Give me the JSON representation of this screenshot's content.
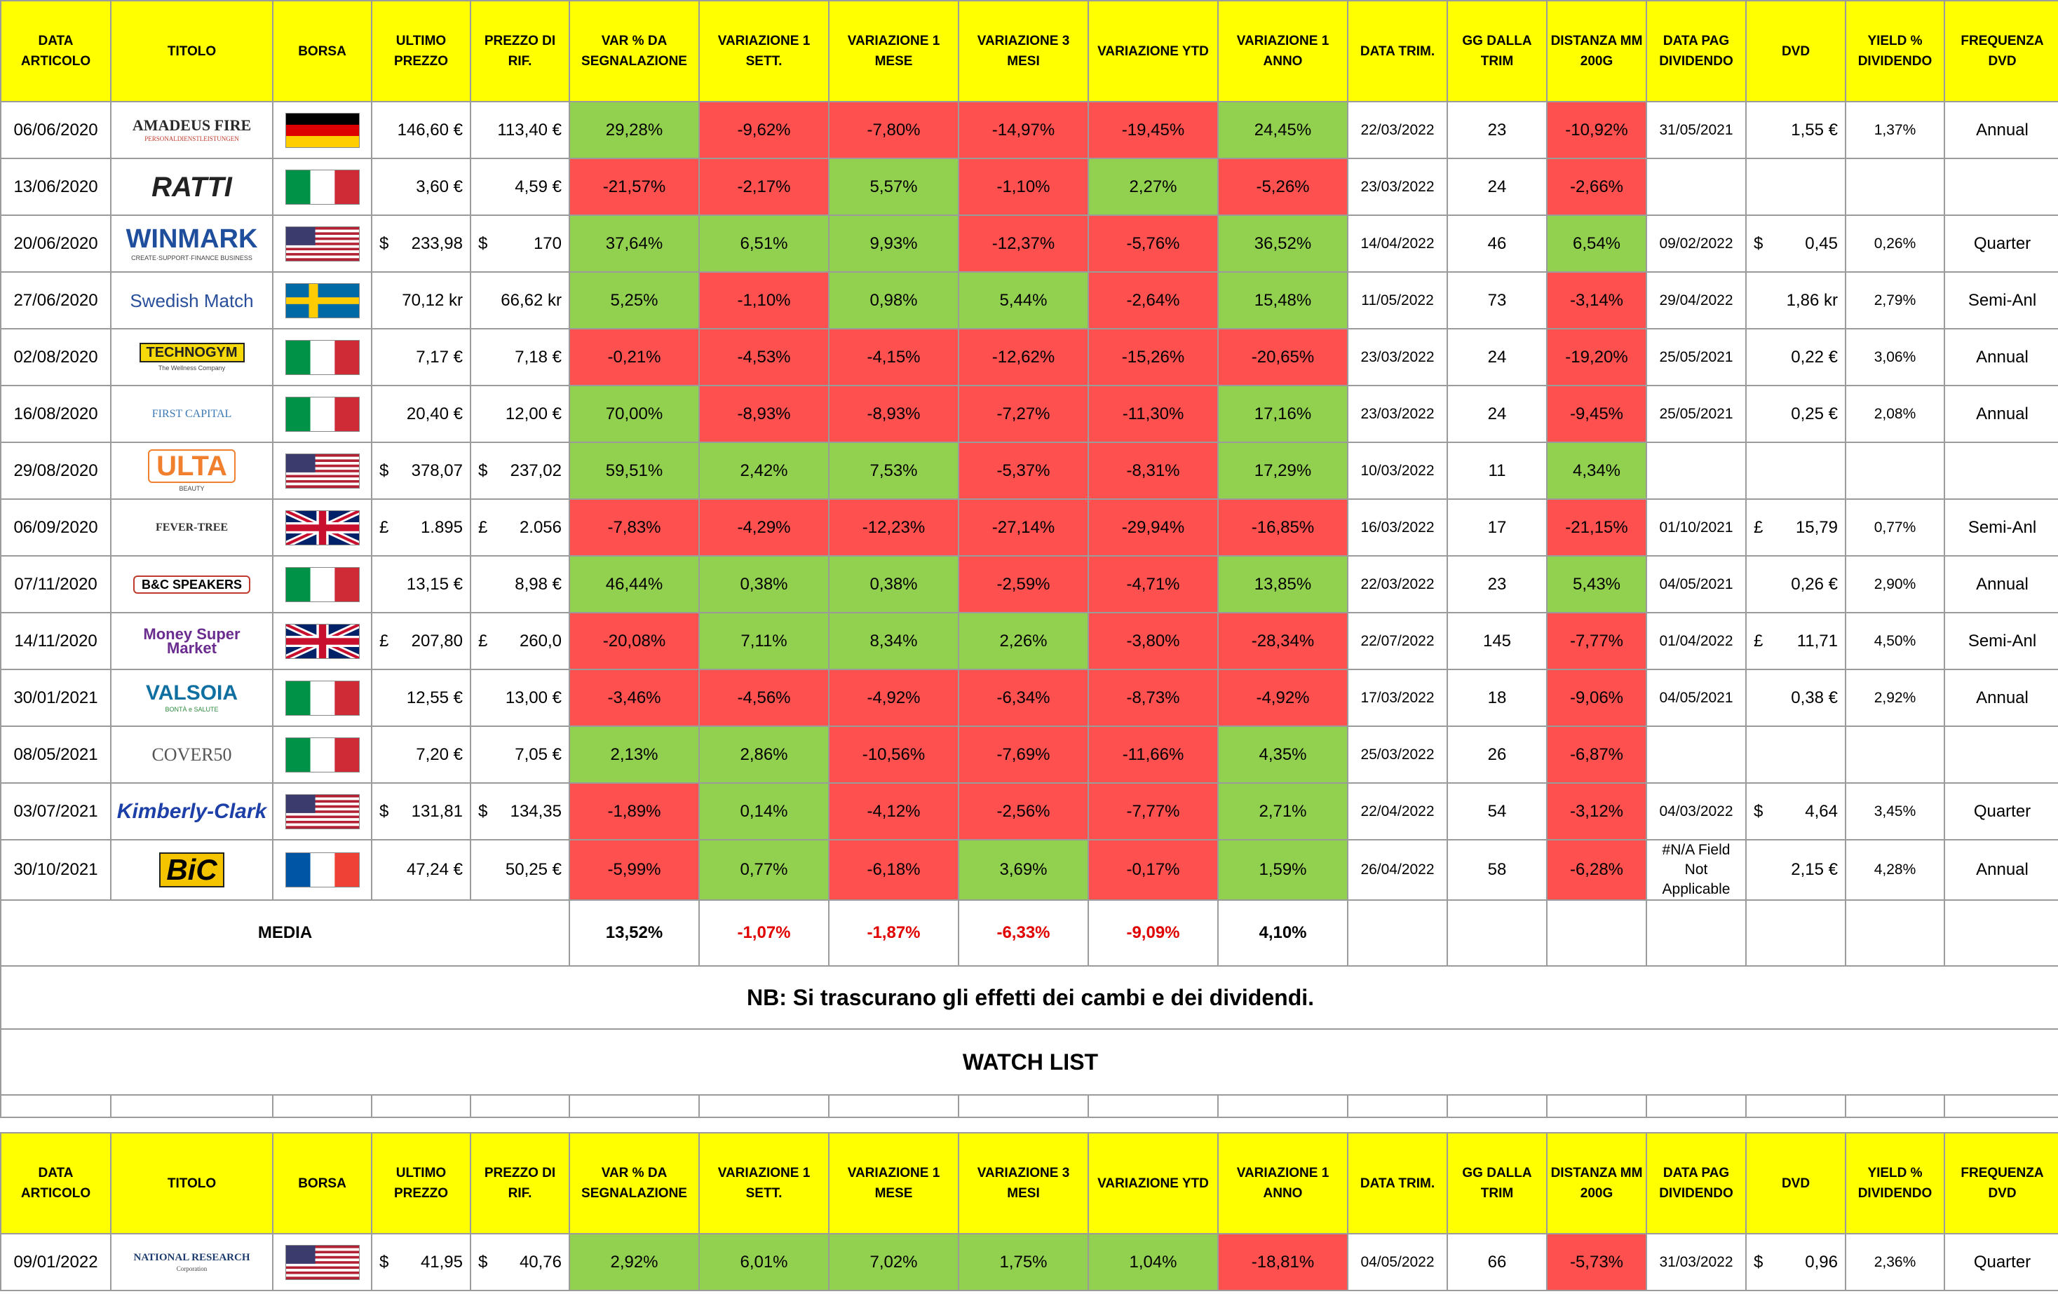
{
  "headers": [
    "DATA ARTICOLO",
    "TITOLO",
    "BORSA",
    "ULTIMO PREZZO",
    "PREZZO DI RIF.",
    "VAR % DA SEGNALAZIONE",
    "VARIAZIONE 1 SETT.",
    "VARIAZIONE 1 MESE",
    "VARIAZIONE 3 MESI",
    "VARIAZIONE YTD",
    "VARIAZIONE 1 ANNO",
    "DATA TRIM.",
    "GG DALLA TRIM",
    "DISTANZA MM 200G",
    "DATA PAG DIVIDENDO",
    "DVD",
    "YIELD % DIVIDENDO",
    "FREQUENZA DVD"
  ],
  "colors": {
    "header": "#ffff00",
    "positive": "#92d050",
    "negative": "#ff5050",
    "average_negative_text": "#e00000"
  },
  "rows": [
    {
      "date": "06/06/2020",
      "logo": "AMADEUS FIRE",
      "logo_sub": "PERSONALDIENSTLEISTUNGEN",
      "flag": "de",
      "last": {
        "sym": "",
        "val": "146,60 €"
      },
      "ref": {
        "sym": "",
        "val": "113,40 €"
      },
      "var_sig": "29,28%",
      "v1w": "-9,62%",
      "v1m": "-7,80%",
      "v3m": "-14,97%",
      "ytd": "-19,45%",
      "v1y": "24,45%",
      "trim": "22/03/2022",
      "gg": "23",
      "mm200": "-10,92%",
      "paydate": "31/05/2021",
      "dvd": {
        "sym": "",
        "val": "1,55 €"
      },
      "yield": "1,37%",
      "freq": "Annual"
    },
    {
      "date": "13/06/2020",
      "logo": "RATTI",
      "logo_sub": "",
      "flag": "it",
      "last": {
        "sym": "",
        "val": "3,60 €"
      },
      "ref": {
        "sym": "",
        "val": "4,59 €"
      },
      "var_sig": "-21,57%",
      "v1w": "-2,17%",
      "v1m": "5,57%",
      "v3m": "-1,10%",
      "ytd": "2,27%",
      "v1y": "-5,26%",
      "trim": "23/03/2022",
      "gg": "24",
      "mm200": "-2,66%",
      "paydate": "",
      "dvd": {
        "sym": "",
        "val": ""
      },
      "yield": "",
      "freq": ""
    },
    {
      "date": "20/06/2020",
      "logo": "WINMARK",
      "logo_sub": "CREATE·SUPPORT·FINANCE BUSINESS",
      "flag": "us",
      "last": {
        "sym": "$",
        "val": "233,98"
      },
      "ref": {
        "sym": "$",
        "val": "170"
      },
      "var_sig": "37,64%",
      "v1w": "6,51%",
      "v1m": "9,93%",
      "v3m": "-12,37%",
      "ytd": "-5,76%",
      "v1y": "36,52%",
      "trim": "14/04/2022",
      "gg": "46",
      "mm200": "6,54%",
      "paydate": "09/02/2022",
      "dvd": {
        "sym": "$",
        "val": "0,45"
      },
      "yield": "0,26%",
      "freq": "Quarter"
    },
    {
      "date": "27/06/2020",
      "logo": "Swedish Match",
      "logo_sub": "",
      "flag": "se",
      "last": {
        "sym": "",
        "val": "70,12 kr"
      },
      "ref": {
        "sym": "",
        "val": "66,62 kr"
      },
      "var_sig": "5,25%",
      "v1w": "-1,10%",
      "v1m": "0,98%",
      "v3m": "5,44%",
      "ytd": "-2,64%",
      "v1y": "15,48%",
      "trim": "11/05/2022",
      "gg": "73",
      "mm200": "-3,14%",
      "paydate": "29/04/2022",
      "dvd": {
        "sym": "",
        "val": "1,86 kr"
      },
      "yield": "2,79%",
      "freq": "Semi-Anl"
    },
    {
      "date": "02/08/2020",
      "logo": "TECHNOGYM",
      "logo_sub": "The Wellness Company",
      "flag": "it",
      "last": {
        "sym": "",
        "val": "7,17 €"
      },
      "ref": {
        "sym": "",
        "val": "7,18 €"
      },
      "var_sig": "-0,21%",
      "v1w": "-4,53%",
      "v1m": "-4,15%",
      "v3m": "-12,62%",
      "ytd": "-15,26%",
      "v1y": "-20,65%",
      "trim": "23/03/2022",
      "gg": "24",
      "mm200": "-19,20%",
      "paydate": "25/05/2021",
      "dvd": {
        "sym": "",
        "val": "0,22 €"
      },
      "yield": "3,06%",
      "freq": "Annual"
    },
    {
      "date": "16/08/2020",
      "logo": "FIRST CAPITAL",
      "logo_sub": "",
      "flag": "it",
      "last": {
        "sym": "",
        "val": "20,40 €"
      },
      "ref": {
        "sym": "",
        "val": "12,00 €"
      },
      "var_sig": "70,00%",
      "v1w": "-8,93%",
      "v1m": "-8,93%",
      "v3m": "-7,27%",
      "ytd": "-11,30%",
      "v1y": "17,16%",
      "trim": "23/03/2022",
      "gg": "24",
      "mm200": "-9,45%",
      "paydate": "25/05/2021",
      "dvd": {
        "sym": "",
        "val": "0,25 €"
      },
      "yield": "2,08%",
      "freq": "Annual"
    },
    {
      "date": "29/08/2020",
      "logo": "ULTA",
      "logo_sub": "BEAUTY",
      "flag": "us",
      "last": {
        "sym": "$",
        "val": "378,07"
      },
      "ref": {
        "sym": "$",
        "val": "237,02"
      },
      "var_sig": "59,51%",
      "v1w": "2,42%",
      "v1m": "7,53%",
      "v3m": "-5,37%",
      "ytd": "-8,31%",
      "v1y": "17,29%",
      "trim": "10/03/2022",
      "gg": "11",
      "mm200": "4,34%",
      "paydate": "",
      "dvd": {
        "sym": "",
        "val": ""
      },
      "yield": "",
      "freq": ""
    },
    {
      "date": "06/09/2020",
      "logo": "FEVER-TREE",
      "logo_sub": "",
      "flag": "uk",
      "last": {
        "sym": "£",
        "val": "1.895"
      },
      "ref": {
        "sym": "£",
        "val": "2.056"
      },
      "var_sig": "-7,83%",
      "v1w": "-4,29%",
      "v1m": "-12,23%",
      "v3m": "-27,14%",
      "ytd": "-29,94%",
      "v1y": "-16,85%",
      "trim": "16/03/2022",
      "gg": "17",
      "mm200": "-21,15%",
      "paydate": "01/10/2021",
      "dvd": {
        "sym": "£",
        "val": "15,79"
      },
      "yield": "0,77%",
      "freq": "Semi-Anl"
    },
    {
      "date": "07/11/2020",
      "logo": "B&C SPEAKERS",
      "logo_sub": "",
      "flag": "it",
      "last": {
        "sym": "",
        "val": "13,15 €"
      },
      "ref": {
        "sym": "",
        "val": "8,98 €"
      },
      "var_sig": "46,44%",
      "v1w": "0,38%",
      "v1m": "0,38%",
      "v3m": "-2,59%",
      "ytd": "-4,71%",
      "v1y": "13,85%",
      "trim": "22/03/2022",
      "gg": "23",
      "mm200": "5,43%",
      "paydate": "04/05/2021",
      "dvd": {
        "sym": "",
        "val": "0,26 €"
      },
      "yield": "2,90%",
      "freq": "Annual"
    },
    {
      "date": "14/11/2020",
      "logo": "Money Super Market",
      "logo_sub": "",
      "flag": "uk",
      "last": {
        "sym": "£",
        "val": "207,80"
      },
      "ref": {
        "sym": "£",
        "val": "260,0"
      },
      "var_sig": "-20,08%",
      "v1w": "7,11%",
      "v1m": "8,34%",
      "v3m": "2,26%",
      "ytd": "-3,80%",
      "v1y": "-28,34%",
      "trim": "22/07/2022",
      "gg": "145",
      "mm200": "-7,77%",
      "paydate": "01/04/2022",
      "dvd": {
        "sym": "£",
        "val": "11,71"
      },
      "yield": "4,50%",
      "freq": "Semi-Anl"
    },
    {
      "date": "30/01/2021",
      "logo": "VALSOIA",
      "logo_sub": "BONTÀ e SALUTE",
      "flag": "it",
      "last": {
        "sym": "",
        "val": "12,55 €"
      },
      "ref": {
        "sym": "",
        "val": "13,00 €"
      },
      "var_sig": "-3,46%",
      "v1w": "-4,56%",
      "v1m": "-4,92%",
      "v3m": "-6,34%",
      "ytd": "-8,73%",
      "v1y": "-4,92%",
      "trim": "17/03/2022",
      "gg": "18",
      "mm200": "-9,06%",
      "paydate": "04/05/2021",
      "dvd": {
        "sym": "",
        "val": "0,38 €"
      },
      "yield": "2,92%",
      "freq": "Annual"
    },
    {
      "date": "08/05/2021",
      "logo": "COVER50",
      "logo_sub": "",
      "flag": "it",
      "last": {
        "sym": "",
        "val": "7,20 €"
      },
      "ref": {
        "sym": "",
        "val": "7,05 €"
      },
      "var_sig": "2,13%",
      "v1w": "2,86%",
      "v1m": "-10,56%",
      "v3m": "-7,69%",
      "ytd": "-11,66%",
      "v1y": "4,35%",
      "trim": "25/03/2022",
      "gg": "26",
      "mm200": "-6,87%",
      "paydate": "",
      "dvd": {
        "sym": "",
        "val": ""
      },
      "yield": "",
      "freq": ""
    },
    {
      "date": "03/07/2021",
      "logo": "Kimberly-Clark",
      "logo_sub": "",
      "flag": "us",
      "last": {
        "sym": "$",
        "val": "131,81"
      },
      "ref": {
        "sym": "$",
        "val": "134,35"
      },
      "var_sig": "-1,89%",
      "v1w": "0,14%",
      "v1m": "-4,12%",
      "v3m": "-2,56%",
      "ytd": "-7,77%",
      "v1y": "2,71%",
      "trim": "22/04/2022",
      "gg": "54",
      "mm200": "-3,12%",
      "paydate": "04/03/2022",
      "dvd": {
        "sym": "$",
        "val": "4,64"
      },
      "yield": "3,45%",
      "freq": "Quarter"
    },
    {
      "date": "30/10/2021",
      "logo": "BiC",
      "logo_sub": "",
      "flag": "fr",
      "last": {
        "sym": "",
        "val": "47,24 €"
      },
      "ref": {
        "sym": "",
        "val": "50,25 €"
      },
      "var_sig": "-5,99%",
      "v1w": "0,77%",
      "v1m": "-6,18%",
      "v3m": "3,69%",
      "ytd": "-0,17%",
      "v1y": "1,59%",
      "trim": "26/04/2022",
      "gg": "58",
      "mm200": "-6,28%",
      "paydate": "#N/A Field Not Applicable",
      "dvd": {
        "sym": "",
        "val": "2,15 €"
      },
      "yield": "4,28%",
      "freq": "Annual"
    }
  ],
  "average": {
    "label": "MEDIA",
    "var_sig": "13,52%",
    "v1w": "-1,07%",
    "v1m": "-1,87%",
    "v3m": "-6,33%",
    "ytd": "-9,09%",
    "v1y": "4,10%"
  },
  "note": "NB: Si trascurano gli effetti dei cambi e dei dividendi.",
  "watch_title": "WATCH LIST",
  "watch_rows": [
    {
      "date": "09/01/2022",
      "logo": "NATIONAL RESEARCH",
      "logo_sub": "Corporation",
      "flag": "us",
      "last": {
        "sym": "$",
        "val": "41,95"
      },
      "ref": {
        "sym": "$",
        "val": "40,76"
      },
      "var_sig": "2,92%",
      "v1w": "6,01%",
      "v1m": "7,02%",
      "v3m": "1,75%",
      "ytd": "1,04%",
      "v1y": "-18,81%",
      "trim": "04/05/2022",
      "gg": "66",
      "mm200": "-5,73%",
      "paydate": "31/03/2022",
      "dvd": {
        "sym": "$",
        "val": "0,96"
      },
      "yield": "2,36%",
      "freq": "Quarter"
    }
  ]
}
